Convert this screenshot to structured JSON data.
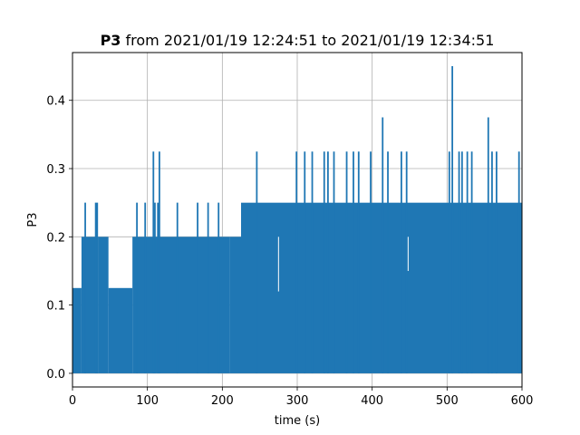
{
  "chart_data": {
    "type": "line",
    "title_bold": "P3",
    "title_rest": " from 2021/01/19 12:24:51 to 2021/01/19 12:34:51",
    "xlabel": "time (s)",
    "ylabel": "P3",
    "xlim": [
      0,
      600
    ],
    "ylim": [
      -0.02,
      0.47
    ],
    "xticks": [
      0,
      100,
      200,
      300,
      400,
      500,
      600
    ],
    "yticks": [
      0.0,
      0.1,
      0.2,
      0.3,
      0.4
    ],
    "grid": true,
    "series": [
      {
        "color": "#1f77b4",
        "baseline": 0.0,
        "segments": [
          {
            "x0": 0,
            "x1": 12,
            "level": 0.125
          },
          {
            "x0": 12,
            "x1": 35,
            "level": 0.2
          },
          {
            "x0": 35,
            "x1": 48,
            "level": 0.2
          },
          {
            "x0": 48,
            "x1": 80,
            "level": 0.125
          },
          {
            "x0": 80,
            "x1": 210,
            "level": 0.2
          },
          {
            "x0": 210,
            "x1": 225,
            "level": 0.2
          },
          {
            "x0": 225,
            "x1": 600,
            "level": 0.25
          }
        ],
        "spikes": [
          {
            "x": 17,
            "y": 0.25
          },
          {
            "x": 31,
            "y": 0.25
          },
          {
            "x": 33,
            "y": 0.25
          },
          {
            "x": 86,
            "y": 0.25
          },
          {
            "x": 97,
            "y": 0.25
          },
          {
            "x": 108,
            "y": 0.325
          },
          {
            "x": 110,
            "y": 0.25
          },
          {
            "x": 114,
            "y": 0.25
          },
          {
            "x": 116,
            "y": 0.325
          },
          {
            "x": 140,
            "y": 0.25
          },
          {
            "x": 167,
            "y": 0.25
          },
          {
            "x": 181,
            "y": 0.25
          },
          {
            "x": 195,
            "y": 0.25
          },
          {
            "x": 246,
            "y": 0.325
          },
          {
            "x": 299,
            "y": 0.325
          },
          {
            "x": 310,
            "y": 0.325
          },
          {
            "x": 320,
            "y": 0.325
          },
          {
            "x": 336,
            "y": 0.325
          },
          {
            "x": 341,
            "y": 0.325
          },
          {
            "x": 349,
            "y": 0.325
          },
          {
            "x": 366,
            "y": 0.325
          },
          {
            "x": 375,
            "y": 0.325
          },
          {
            "x": 382,
            "y": 0.325
          },
          {
            "x": 398,
            "y": 0.325
          },
          {
            "x": 414,
            "y": 0.375
          },
          {
            "x": 421,
            "y": 0.325
          },
          {
            "x": 439,
            "y": 0.325
          },
          {
            "x": 446,
            "y": 0.325
          },
          {
            "x": 503,
            "y": 0.325
          },
          {
            "x": 507,
            "y": 0.45
          },
          {
            "x": 516,
            "y": 0.325
          },
          {
            "x": 520,
            "y": 0.325
          },
          {
            "x": 527,
            "y": 0.325
          },
          {
            "x": 533,
            "y": 0.325
          },
          {
            "x": 555,
            "y": 0.375
          },
          {
            "x": 560,
            "y": 0.325
          },
          {
            "x": 566,
            "y": 0.325
          },
          {
            "x": 596,
            "y": 0.325
          }
        ],
        "dips": [
          {
            "x": 275,
            "y": 0.12
          },
          {
            "x": 448,
            "y": 0.15
          }
        ]
      }
    ]
  }
}
